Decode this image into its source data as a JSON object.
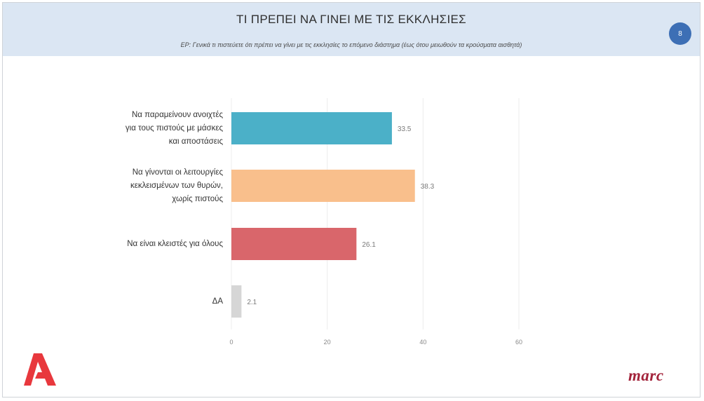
{
  "header": {
    "title": "ΤΙ ΠΡΕΠΕΙ ΝΑ ΓΙΝΕΙ ΜΕ ΤΙΣ ΕΚΚΛΗΣΙΕΣ",
    "subtitle": "ΕΡ: Γενικά τι πιστεύετε ότι πρέπει να γίνει με τις εκκλησίες το επόμενο διάστημα (έως ότου μειωθούν τα κρούσματα αισθητά)",
    "page_badge": "8"
  },
  "chart_data": {
    "type": "bar",
    "orientation": "horizontal",
    "categories": [
      "Να παραμείνουν ανοιχτές για τους πιστούς με μάσκες και αποστάσεις",
      "Να γίνονται οι λειτουργίες κεκλεισμένων των θυρών, χωρίς πιστούς",
      "Να είναι κλειστές για όλους",
      "ΔΑ"
    ],
    "category_lines": [
      [
        "Να παραμείνουν ανοιχτές",
        "για τους πιστούς με μάσκες",
        "και αποστάσεις"
      ],
      [
        "Να γίνονται οι λειτουργίες",
        "κεκλεισμένων των θυρών,",
        "χωρίς πιστούς"
      ],
      [
        "Να είναι κλειστές για όλους"
      ],
      [
        "ΔΑ"
      ]
    ],
    "values": [
      33.5,
      38.3,
      26.1,
      2.1
    ],
    "value_labels": [
      "33.5",
      "38.3",
      "26.1",
      "2.1"
    ],
    "colors": [
      "#4bb0c8",
      "#f9bf8c",
      "#d9666b",
      "#d6d6d6"
    ],
    "xlim": [
      0,
      60
    ],
    "xticks": [
      0,
      20,
      40,
      60
    ],
    "grid": true,
    "title": "ΤΙ ΠΡΕΠΕΙ ΝΑ ΓΙΝΕΙ ΜΕ ΤΙΣ ΕΚΚΛΗΣΙΕΣ",
    "xlabel": "",
    "ylabel": ""
  },
  "logos": {
    "left_icon": "alpha-tv-logo-icon",
    "right_text": "marc",
    "right_color": "#a3243b",
    "left_color": "#e8383d"
  }
}
